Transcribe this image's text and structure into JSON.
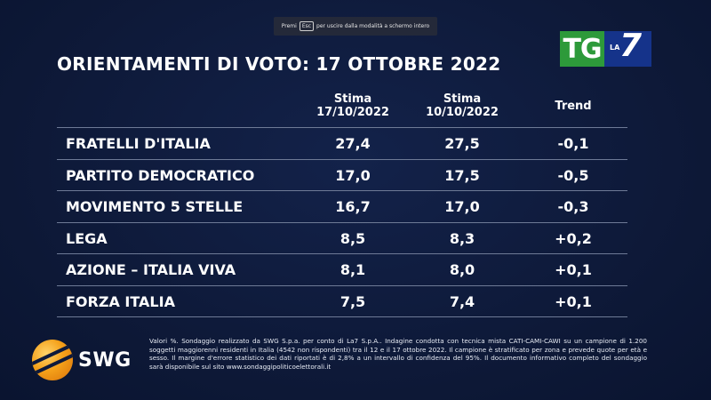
{
  "fullscreen_hint": {
    "prefix": "Premi",
    "key": "Esc",
    "suffix": "per uscire dalla modalità a schermo intero"
  },
  "logo": {
    "tg": "TG",
    "la": "LA",
    "seven": "7"
  },
  "chart_data": {
    "type": "table",
    "title": "ORIENTAMENTI DI VOTO: 17 OTTOBRE 2022",
    "columns": [
      {
        "line1": "Stima",
        "line2": "17/10/2022"
      },
      {
        "line1": "Stima",
        "line2": "10/10/2022"
      },
      {
        "line1": "Trend",
        "line2": ""
      }
    ],
    "rows": [
      {
        "party": "FRATELLI D'ITALIA",
        "current": "27,4",
        "previous": "27,5",
        "trend": "-0,1"
      },
      {
        "party": "PARTITO DEMOCRATICO",
        "current": "17,0",
        "previous": "17,5",
        "trend": "-0,5"
      },
      {
        "party": "MOVIMENTO 5 STELLE",
        "current": "16,7",
        "previous": "17,0",
        "trend": "-0,3"
      },
      {
        "party": "LEGA",
        "current": "8,5",
        "previous": "8,3",
        "trend": "+0,2"
      },
      {
        "party": "AZIONE – ITALIA VIVA",
        "current": "8,1",
        "previous": "8,0",
        "trend": "+0,1"
      },
      {
        "party": "FORZA ITALIA",
        "current": "7,5",
        "previous": "7,4",
        "trend": "+0,1"
      }
    ]
  },
  "brand": {
    "name": "SWG"
  },
  "footnote": "Valori %. Sondaggio realizzato da SWG S.p.a. per conto di La7 S.p.A.. Indagine condotta con tecnica mista CATI-CAMI-CAWI su un campione di 1.200 soggetti maggiorenni residenti in Italia (4542 non rispondenti) tra il 12 e il 17 ottobre 2022. Il campione è stratificato per zona e prevede quote per età e sesso. Il margine d'errore statistico dei dati riportati è di 2,8% a un intervallo di confidenza del 95%. Il documento informativo completo del sondaggio sarà disponibile sul sito www.sondaggipoliticoelettorali.it",
  "colors": {
    "background": "#0e1a3c",
    "text": "#ffffff",
    "rule": "#6e7a96",
    "tg_green": "#2d9a3a",
    "la7_blue": "#15338a",
    "swg_orange": "#f5a11a"
  }
}
